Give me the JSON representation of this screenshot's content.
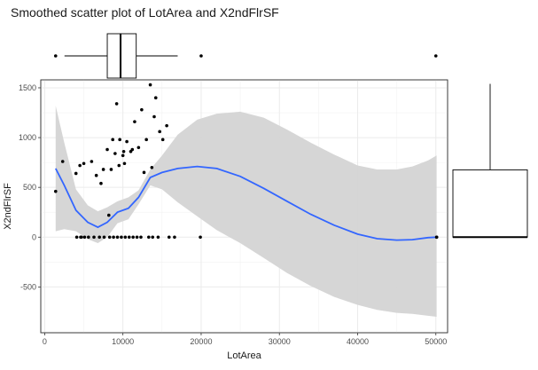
{
  "chart_data": {
    "type": "scatter",
    "title": "Smoothed scatter plot of LotArea and X2ndFlrSF",
    "xlabel": "LotArea",
    "ylabel": "X2ndFlrSF",
    "xlim": [
      -500,
      51500
    ],
    "ylim": [
      -960,
      1580
    ],
    "x_ticks": [
      0,
      10000,
      20000,
      30000,
      40000,
      50000
    ],
    "y_ticks": [
      -500,
      0,
      500,
      1000,
      1500
    ],
    "grid": true,
    "marginal_plots": [
      "boxplot-x-top",
      "boxplot-y-right"
    ],
    "colors": {
      "smooth_line": "#3366ff",
      "confidence_band": "#d4d4d4",
      "points": "#000000",
      "panel": "#ffffff",
      "grid": "#ebebeb"
    },
    "series": [
      {
        "kind": "points",
        "x": [
          1400,
          2300,
          4000,
          4500,
          4700,
          5000,
          6000,
          6600,
          7200,
          7500,
          8000,
          8200,
          8500,
          8700,
          9000,
          9200,
          9500,
          9600,
          10000,
          10100,
          10200,
          10500,
          11000,
          11200,
          11500,
          12000,
          12400,
          12700,
          13000,
          13500,
          13700,
          14000,
          14200,
          14700,
          15100,
          15600,
          4100,
          4600,
          5100,
          5600,
          6300,
          7000,
          7600,
          8300,
          8800,
          9300,
          9800,
          10300,
          10800,
          11300,
          11800,
          12300,
          13300,
          13800,
          14500,
          15900,
          16600,
          19900,
          50100
        ],
        "y": [
          460,
          760,
          640,
          720,
          0,
          740,
          760,
          620,
          540,
          680,
          880,
          220,
          680,
          980,
          840,
          1340,
          720,
          980,
          820,
          860,
          740,
          960,
          860,
          880,
          1160,
          900,
          1280,
          650,
          980,
          1530,
          700,
          1210,
          1400,
          1060,
          980,
          1120,
          0,
          0,
          0,
          0,
          0,
          0,
          0,
          0,
          0,
          0,
          0,
          0,
          0,
          0,
          0,
          0,
          0,
          0,
          0,
          0,
          0,
          0,
          0
        ]
      },
      {
        "kind": "loess",
        "x": [
          1400,
          2500,
          4000,
          5500,
          6800,
          8000,
          9300,
          10700,
          12000,
          13500,
          15000,
          17000,
          19500,
          22000,
          25000,
          28000,
          31000,
          34000,
          37000,
          40000,
          42500,
          45000,
          47000,
          49000,
          50100
        ],
        "y": [
          690,
          520,
          270,
          150,
          100,
          150,
          250,
          290,
          400,
          600,
          650,
          690,
          710,
          690,
          610,
          490,
          360,
          230,
          120,
          30,
          -15,
          -30,
          -25,
          -5,
          0
        ],
        "lower": [
          60,
          80,
          60,
          -20,
          -60,
          0,
          140,
          180,
          330,
          520,
          480,
          350,
          210,
          70,
          -60,
          -210,
          -360,
          -490,
          -600,
          -680,
          -730,
          -760,
          -770,
          -790,
          -800
        ],
        "upper": [
          1320,
          950,
          480,
          320,
          260,
          300,
          360,
          400,
          470,
          680,
          820,
          1030,
          1180,
          1240,
          1260,
          1200,
          1080,
          950,
          830,
          720,
          680,
          680,
          710,
          770,
          820
        ]
      }
    ],
    "marginal_x_boxplot": {
      "whisker_low": 1400,
      "q1": 8000,
      "median": 9700,
      "q3": 11700,
      "whisker_high": 17000,
      "outliers": [
        1400,
        20000,
        50000
      ]
    },
    "marginal_y_boxplot": {
      "whisker_low": 0,
      "q1": 0,
      "median": 0,
      "q3": 676,
      "whisker_high": 1540,
      "outliers": []
    }
  }
}
